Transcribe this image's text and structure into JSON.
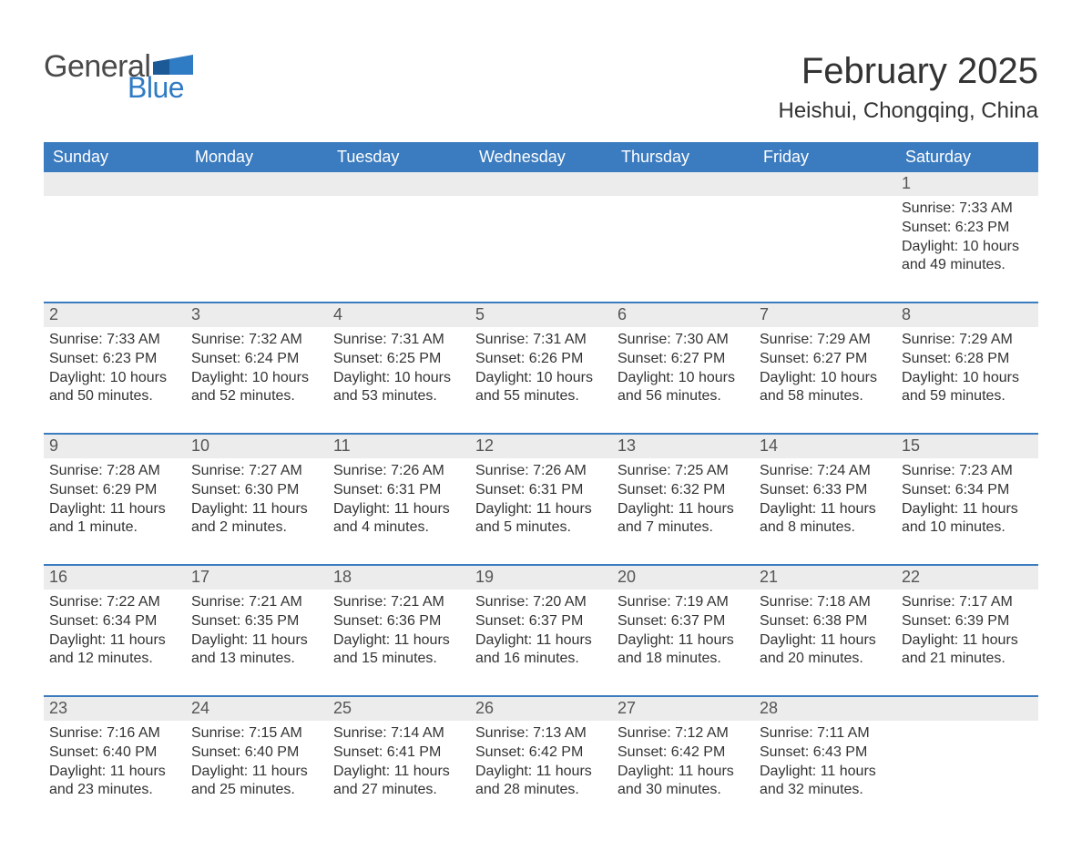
{
  "logo": {
    "text_primary": "General",
    "text_secondary": "Blue",
    "primary_color": "#4a4a4a",
    "secondary_color": "#2f7bc4"
  },
  "title": "February 2025",
  "location": "Heishui, Chongqing, China",
  "colors": {
    "header_bg": "#3b7bbf",
    "header_text": "#ffffff",
    "daynum_bg": "#ececec",
    "daynum_border": "#3b7bbf",
    "body_text": "#333333",
    "page_bg": "#ffffff"
  },
  "days_of_week": [
    "Sunday",
    "Monday",
    "Tuesday",
    "Wednesday",
    "Thursday",
    "Friday",
    "Saturday"
  ],
  "weeks": [
    {
      "cells": [
        {
          "day": "",
          "lines": []
        },
        {
          "day": "",
          "lines": []
        },
        {
          "day": "",
          "lines": []
        },
        {
          "day": "",
          "lines": []
        },
        {
          "day": "",
          "lines": []
        },
        {
          "day": "",
          "lines": []
        },
        {
          "day": "1",
          "lines": [
            "Sunrise: 7:33 AM",
            "Sunset: 6:23 PM",
            "Daylight: 10 hours",
            "and 49 minutes."
          ]
        }
      ]
    },
    {
      "cells": [
        {
          "day": "2",
          "lines": [
            "Sunrise: 7:33 AM",
            "Sunset: 6:23 PM",
            "Daylight: 10 hours",
            "and 50 minutes."
          ]
        },
        {
          "day": "3",
          "lines": [
            "Sunrise: 7:32 AM",
            "Sunset: 6:24 PM",
            "Daylight: 10 hours",
            "and 52 minutes."
          ]
        },
        {
          "day": "4",
          "lines": [
            "Sunrise: 7:31 AM",
            "Sunset: 6:25 PM",
            "Daylight: 10 hours",
            "and 53 minutes."
          ]
        },
        {
          "day": "5",
          "lines": [
            "Sunrise: 7:31 AM",
            "Sunset: 6:26 PM",
            "Daylight: 10 hours",
            "and 55 minutes."
          ]
        },
        {
          "day": "6",
          "lines": [
            "Sunrise: 7:30 AM",
            "Sunset: 6:27 PM",
            "Daylight: 10 hours",
            "and 56 minutes."
          ]
        },
        {
          "day": "7",
          "lines": [
            "Sunrise: 7:29 AM",
            "Sunset: 6:27 PM",
            "Daylight: 10 hours",
            "and 58 minutes."
          ]
        },
        {
          "day": "8",
          "lines": [
            "Sunrise: 7:29 AM",
            "Sunset: 6:28 PM",
            "Daylight: 10 hours",
            "and 59 minutes."
          ]
        }
      ]
    },
    {
      "cells": [
        {
          "day": "9",
          "lines": [
            "Sunrise: 7:28 AM",
            "Sunset: 6:29 PM",
            "Daylight: 11 hours",
            "and 1 minute."
          ]
        },
        {
          "day": "10",
          "lines": [
            "Sunrise: 7:27 AM",
            "Sunset: 6:30 PM",
            "Daylight: 11 hours",
            "and 2 minutes."
          ]
        },
        {
          "day": "11",
          "lines": [
            "Sunrise: 7:26 AM",
            "Sunset: 6:31 PM",
            "Daylight: 11 hours",
            "and 4 minutes."
          ]
        },
        {
          "day": "12",
          "lines": [
            "Sunrise: 7:26 AM",
            "Sunset: 6:31 PM",
            "Daylight: 11 hours",
            "and 5 minutes."
          ]
        },
        {
          "day": "13",
          "lines": [
            "Sunrise: 7:25 AM",
            "Sunset: 6:32 PM",
            "Daylight: 11 hours",
            "and 7 minutes."
          ]
        },
        {
          "day": "14",
          "lines": [
            "Sunrise: 7:24 AM",
            "Sunset: 6:33 PM",
            "Daylight: 11 hours",
            "and 8 minutes."
          ]
        },
        {
          "day": "15",
          "lines": [
            "Sunrise: 7:23 AM",
            "Sunset: 6:34 PM",
            "Daylight: 11 hours",
            "and 10 minutes."
          ]
        }
      ]
    },
    {
      "cells": [
        {
          "day": "16",
          "lines": [
            "Sunrise: 7:22 AM",
            "Sunset: 6:34 PM",
            "Daylight: 11 hours",
            "and 12 minutes."
          ]
        },
        {
          "day": "17",
          "lines": [
            "Sunrise: 7:21 AM",
            "Sunset: 6:35 PM",
            "Daylight: 11 hours",
            "and 13 minutes."
          ]
        },
        {
          "day": "18",
          "lines": [
            "Sunrise: 7:21 AM",
            "Sunset: 6:36 PM",
            "Daylight: 11 hours",
            "and 15 minutes."
          ]
        },
        {
          "day": "19",
          "lines": [
            "Sunrise: 7:20 AM",
            "Sunset: 6:37 PM",
            "Daylight: 11 hours",
            "and 16 minutes."
          ]
        },
        {
          "day": "20",
          "lines": [
            "Sunrise: 7:19 AM",
            "Sunset: 6:37 PM",
            "Daylight: 11 hours",
            "and 18 minutes."
          ]
        },
        {
          "day": "21",
          "lines": [
            "Sunrise: 7:18 AM",
            "Sunset: 6:38 PM",
            "Daylight: 11 hours",
            "and 20 minutes."
          ]
        },
        {
          "day": "22",
          "lines": [
            "Sunrise: 7:17 AM",
            "Sunset: 6:39 PM",
            "Daylight: 11 hours",
            "and 21 minutes."
          ]
        }
      ]
    },
    {
      "cells": [
        {
          "day": "23",
          "lines": [
            "Sunrise: 7:16 AM",
            "Sunset: 6:40 PM",
            "Daylight: 11 hours",
            "and 23 minutes."
          ]
        },
        {
          "day": "24",
          "lines": [
            "Sunrise: 7:15 AM",
            "Sunset: 6:40 PM",
            "Daylight: 11 hours",
            "and 25 minutes."
          ]
        },
        {
          "day": "25",
          "lines": [
            "Sunrise: 7:14 AM",
            "Sunset: 6:41 PM",
            "Daylight: 11 hours",
            "and 27 minutes."
          ]
        },
        {
          "day": "26",
          "lines": [
            "Sunrise: 7:13 AM",
            "Sunset: 6:42 PM",
            "Daylight: 11 hours",
            "and 28 minutes."
          ]
        },
        {
          "day": "27",
          "lines": [
            "Sunrise: 7:12 AM",
            "Sunset: 6:42 PM",
            "Daylight: 11 hours",
            "and 30 minutes."
          ]
        },
        {
          "day": "28",
          "lines": [
            "Sunrise: 7:11 AM",
            "Sunset: 6:43 PM",
            "Daylight: 11 hours",
            "and 32 minutes."
          ]
        },
        {
          "day": "",
          "lines": []
        }
      ]
    }
  ]
}
